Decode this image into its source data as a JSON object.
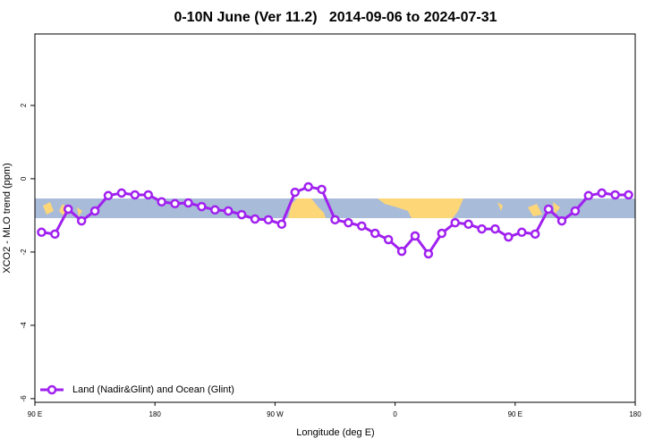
{
  "chart_data": {
    "type": "line",
    "title": "0-10N June (Ver 11.2)   2014-09-06 to 2024-07-31",
    "x_label": "Longitude (deg E)",
    "y_label": "XCO2 - MLO trend (ppm)",
    "xlim": [
      90,
      540
    ],
    "xticks": [
      {
        "value": 90,
        "label": "90 E"
      },
      180,
      {
        "value": 270,
        "label": "90 W"
      },
      {
        "value": 360,
        "label": "0"
      },
      {
        "value": 450,
        "label": "90 E"
      },
      {
        "value": 540,
        "label": "180"
      }
    ],
    "ylim": [
      -6.1,
      3.95
    ],
    "yticks": [
      2,
      0,
      -2,
      -4,
      -6
    ],
    "legend": "bottom-left",
    "x": [
      95,
      105,
      115,
      125,
      135,
      145,
      155,
      165,
      175,
      185,
      195,
      205,
      215,
      225,
      235,
      245,
      255,
      265,
      275,
      285,
      295,
      305,
      315,
      325,
      335,
      345,
      355,
      365,
      375,
      385,
      395,
      405,
      415,
      425,
      435,
      445,
      455,
      465,
      475,
      485,
      495,
      505,
      515,
      525,
      535
    ],
    "series": [
      {
        "name": "Land (Nadir&Glint) and Ocean (Glint)",
        "color": "#a020f0",
        "values": [
          -1.46,
          -1.51,
          -0.83,
          -1.15,
          -0.88,
          -0.46,
          -0.39,
          -0.44,
          -0.44,
          -0.63,
          -0.68,
          -0.66,
          -0.76,
          -0.85,
          -0.88,
          -0.98,
          -1.1,
          -1.12,
          -1.24,
          -0.37,
          -0.22,
          -0.29,
          -1.12,
          -1.2,
          -1.29,
          -1.49,
          -1.66,
          -1.98,
          -1.56,
          -2.05,
          -1.49,
          -1.2,
          -1.24,
          -1.37,
          -1.37,
          -1.59,
          -1.46,
          -1.51,
          -0.83,
          -1.15,
          -0.88,
          -0.46,
          -0.39,
          -0.44,
          -0.44
        ]
      }
    ]
  }
}
